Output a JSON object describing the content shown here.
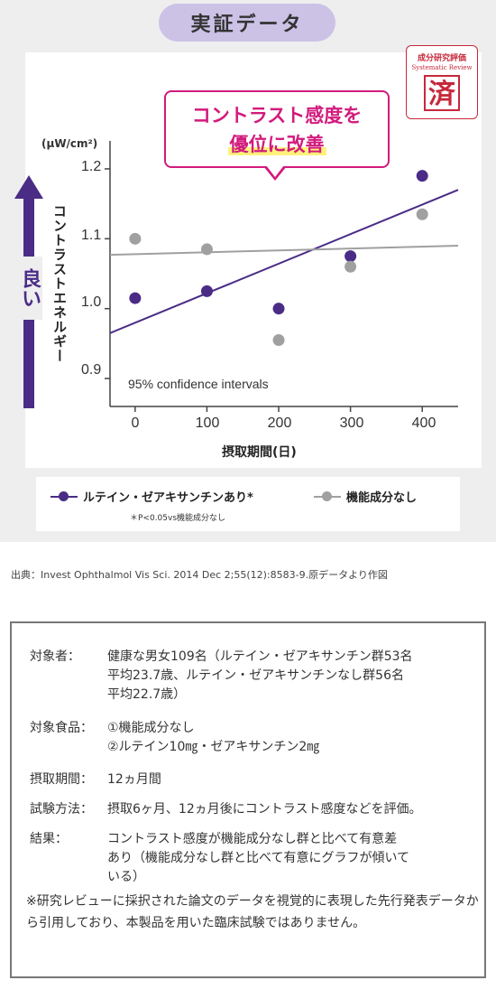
{
  "header": {
    "title": "実証データ"
  },
  "stamp": {
    "line1": "成分研究評価",
    "line2": "Systematic Review",
    "mark": "済"
  },
  "callout": {
    "line1": "コントラスト感度を",
    "line2": "優位に改善"
  },
  "chart_data": {
    "type": "scatter",
    "unit": "(μW/cm²)",
    "ylabel": "コントラストエネルギー",
    "xlabel": "摂取期間(日)",
    "good_label": "良い",
    "annotation": "95% confidence intervals",
    "x_ticks": [
      "0",
      "100",
      "200",
      "300",
      "400"
    ],
    "y_ticks": [
      "0.9",
      "1.0",
      "1.1",
      "1.2"
    ],
    "xlim": [
      -35,
      450
    ],
    "ylim": [
      0.86,
      1.24
    ],
    "colors": {
      "lutein": "#4a2c86",
      "control": "#a0a0a0"
    },
    "series": [
      {
        "name": "ルテイン・ゼアキサンチンあり*",
        "x": [
          0,
          100,
          200,
          300,
          400
        ],
        "y": [
          1.015,
          1.025,
          1.0,
          1.075,
          1.19
        ],
        "trend": [
          [
            -35,
            0.965
          ],
          [
            450,
            1.17
          ]
        ]
      },
      {
        "name": "機能成分なし",
        "x": [
          0,
          100,
          200,
          300,
          400
        ],
        "y": [
          1.1,
          1.085,
          0.955,
          1.06,
          1.135
        ],
        "trend": [
          [
            -35,
            1.077
          ],
          [
            450,
            1.09
          ]
        ]
      }
    ],
    "legend_note": "＊P<0.05vs機能成分なし"
  },
  "source": "出典：Invest Ophthalmol Vis Sci. 2014 Dec 2;55(12):8583-9.原データより作図",
  "info": {
    "rows": [
      {
        "key": "対象者：",
        "lines": [
          "健康な男女109名（ルテイン・ゼアキサンチン群53名",
          "平均23.7歳、ルテイン・ゼアキサンチンなし群56名",
          "平均22.7歳）"
        ]
      },
      {
        "key": "対象食品：",
        "lines": [
          "①機能成分なし",
          "②ルテイン10㎎・ゼアキサンチン2㎎"
        ]
      },
      {
        "key": "摂取期間：",
        "lines": [
          "12ヵ月間"
        ]
      },
      {
        "key": "試験方法：",
        "lines": [
          "摂取6ヶ月、12ヵ月後にコントラスト感度などを評価。"
        ]
      },
      {
        "key": "結果：",
        "lines": [
          "コントラスト感度が機能成分なし群と比べて有意差",
          "あり（機能成分なし群と比べて有意にグラフが傾いて",
          "いる）"
        ]
      }
    ],
    "note": "※研究レビューに採択された論文のデータを視覚的に表現した先行発表データから引用しており、本製品を用いた臨床試験ではありません。"
  }
}
